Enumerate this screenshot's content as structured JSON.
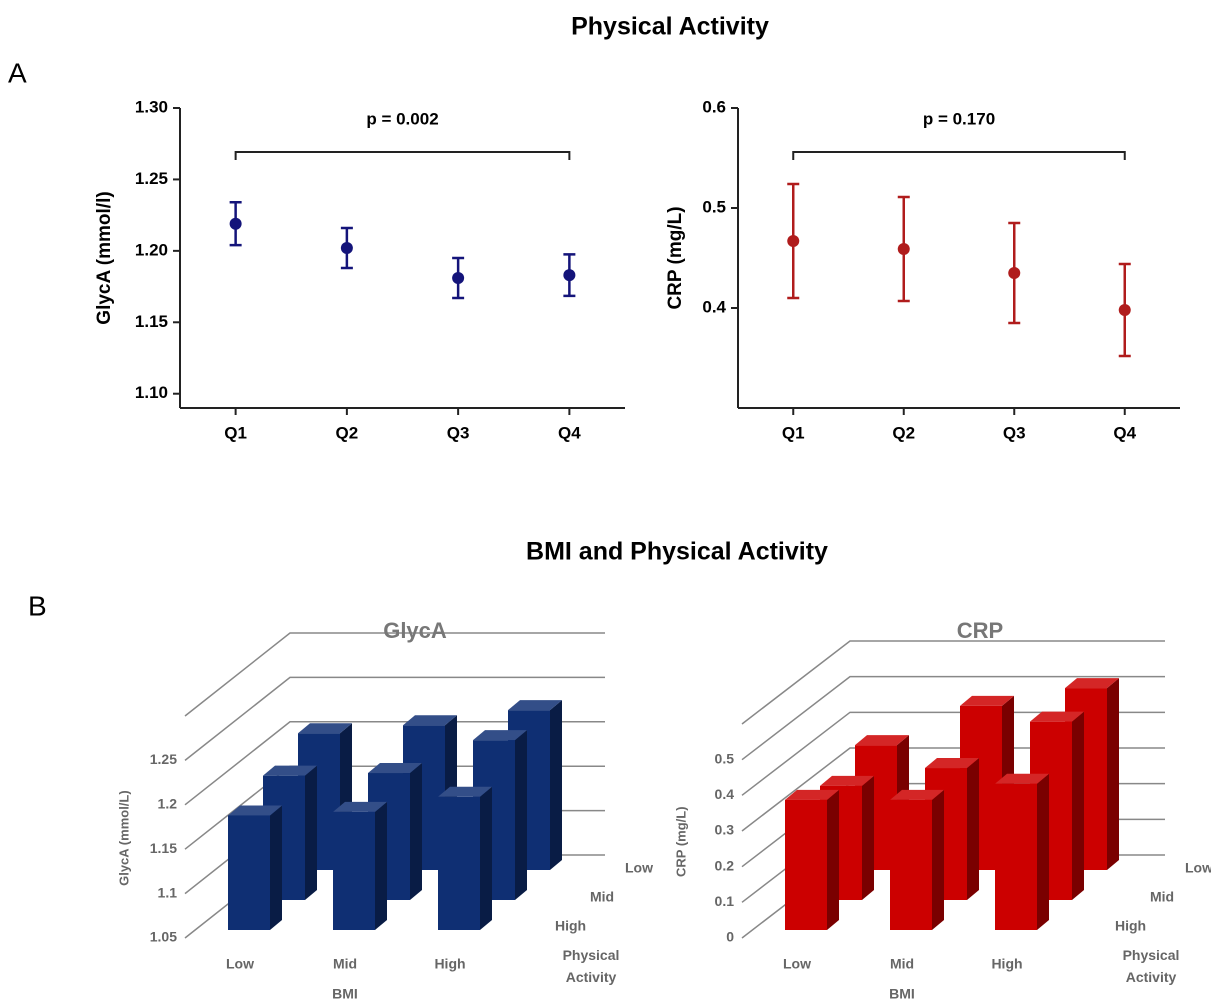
{
  "headings": {
    "title_a": "Physical Activity",
    "panel_a": "A",
    "title_b": "BMI and Physical Activity",
    "panel_b": "B"
  },
  "chart_data": [
    {
      "type": "errorbar",
      "categories": [
        "Q1",
        "Q2",
        "Q3",
        "Q4"
      ],
      "values": [
        1.219,
        1.202,
        1.181,
        1.183
      ],
      "errors": [
        0.015,
        0.014,
        0.014,
        0.0145
      ],
      "color": "#14147a",
      "ylabel": "GlycA (mmol/l)",
      "annotation": "p = 0.002",
      "ylim": [
        1.09,
        1.3
      ],
      "yticks": [
        {
          "value": 1.1,
          "label": "1.10"
        },
        1.15,
        {
          "value": 1.2,
          "label": "1.20"
        },
        1.25,
        {
          "value": 1.3,
          "label": "1.30"
        }
      ]
    },
    {
      "type": "errorbar",
      "categories": [
        "Q1",
        "Q2",
        "Q3",
        "Q4"
      ],
      "values": [
        0.467,
        0.459,
        0.435,
        0.398
      ],
      "errors": [
        0.057,
        0.052,
        0.05,
        0.046
      ],
      "color": "#b01c1c",
      "ylabel": "CRP (mg/L)",
      "annotation": "p = 0.170",
      "ylim": [
        0.3,
        0.6
      ],
      "yticks": [
        0.4,
        0.5,
        0.6
      ]
    },
    {
      "type": "bar3d",
      "title": "GlycA",
      "categories": [
        "Low",
        "Mid",
        "High"
      ],
      "xlabel": "BMI",
      "zlabel": "Physical Activity",
      "ylabel": "GlycA (mmol/L)",
      "series": [
        {
          "name": "High",
          "color": "#0f2f73",
          "values": [
            1.179,
            1.183,
            1.2
          ]
        },
        {
          "name": "Mid",
          "color": "#0f2f73",
          "values": [
            1.19,
            1.193,
            1.23
          ]
        },
        {
          "name": "Low",
          "color": "#0f2f73",
          "values": [
            1.204,
            1.213,
            1.23
          ]
        }
      ],
      "ylim": [
        1.05,
        1.3
      ],
      "yticks": [
        1.05,
        1.1,
        1.15,
        1.2,
        1.25
      ]
    },
    {
      "type": "bar3d",
      "title": "CRP",
      "categories": [
        "Low",
        "Mid",
        "High"
      ],
      "xlabel": "BMI",
      "zlabel": "Physical Activity",
      "ylabel": "CRP (mg/L)",
      "series": [
        {
          "name": "High",
          "color": "#cc0000",
          "values": [
            0.365,
            0.365,
            0.41
          ]
        },
        {
          "name": "Mid",
          "color": "#cc0000",
          "values": [
            0.32,
            0.37,
            0.5
          ]
        },
        {
          "name": "Low",
          "color": "#cc0000",
          "values": [
            0.35,
            0.46,
            0.51
          ]
        }
      ],
      "ylim": [
        0,
        0.6
      ],
      "yticks": [
        0,
        0.1,
        0.2,
        0.3,
        0.4,
        0.5
      ]
    }
  ]
}
